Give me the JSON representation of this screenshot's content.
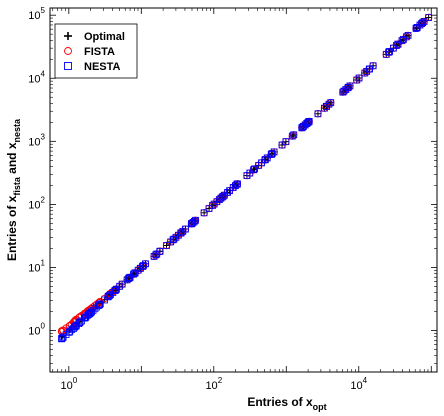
{
  "chart_data": {
    "type": "scatter",
    "title": "",
    "xlabel": {
      "main": "Entries of x",
      "sub": "opt"
    },
    "ylabel": {
      "main": "Entries of x",
      "sub1": "fista",
      "mid": " and x",
      "sub2": "nesta"
    },
    "xscale": "log",
    "yscale": "log",
    "xlim": [
      0.55,
      120000
    ],
    "ylim": [
      0.22,
      130000
    ],
    "x_ticks": [
      {
        "value": 1,
        "base": "10",
        "exp": "0"
      },
      {
        "value": 100,
        "base": "10",
        "exp": "2"
      },
      {
        "value": 10000,
        "base": "10",
        "exp": "4"
      }
    ],
    "y_ticks": [
      {
        "value": 1,
        "base": "10",
        "exp": "0"
      },
      {
        "value": 10,
        "base": "10",
        "exp": "1"
      },
      {
        "value": 100,
        "base": "10",
        "exp": "2"
      },
      {
        "value": 1000,
        "base": "10",
        "exp": "3"
      },
      {
        "value": 10000,
        "base": "10",
        "exp": "4"
      },
      {
        "value": 100000,
        "base": "10",
        "exp": "5"
      }
    ],
    "grid": false,
    "legend_position": "top-left",
    "series": [
      {
        "name": "Optimal",
        "marker": "plus",
        "color": "#000000"
      },
      {
        "name": "FISTA",
        "marker": "circle",
        "color": "#ff0000"
      },
      {
        "name": "NESTA",
        "marker": "square",
        "color": "#0000ff"
      }
    ],
    "x_range": [
      0.75,
      100000
    ],
    "n_points": 170,
    "low_end_deviation": {
      "fista_at_x_0_75": 0.95,
      "nesta_at_x_0_75": 0.68,
      "fades_by_x": 5
    }
  }
}
